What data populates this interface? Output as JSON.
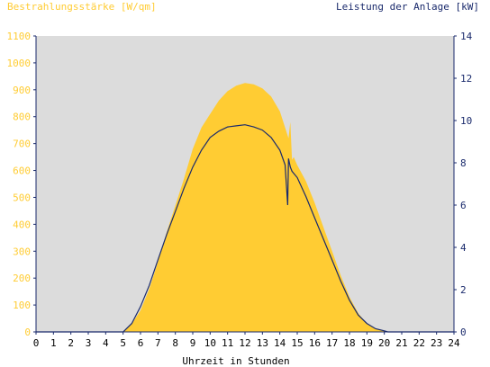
{
  "chart_data": {
    "type": "area",
    "title_left": "Bestrahlungsstärke [W/qm]",
    "title_right": "Leistung der Anlage [kW]",
    "xlabel": "Uhrzeit in Stunden",
    "xlim": [
      0,
      24
    ],
    "ylim_left": [
      0,
      1100
    ],
    "ylim_right": [
      0,
      14
    ],
    "x_ticks": [
      "0",
      "1",
      "2",
      "3",
      "4",
      "5",
      "6",
      "7",
      "8",
      "9",
      "10",
      "11",
      "12",
      "13",
      "14",
      "15",
      "16",
      "17",
      "18",
      "19",
      "20",
      "21",
      "22",
      "23",
      "24"
    ],
    "y_ticks_left": [
      "0",
      "100",
      "200",
      "300",
      "400",
      "500",
      "600",
      "700",
      "800",
      "900",
      "1000",
      "1100"
    ],
    "y_ticks_right": [
      "0",
      "2",
      "4",
      "6",
      "8",
      "10",
      "12",
      "14"
    ],
    "grid": false,
    "colors": {
      "plot_bg": "#dcdcdc",
      "irradiance": "#ffcc33",
      "power": "#1a2a6c",
      "axis": "#1a2a6c",
      "left_labels": "#ffcc33"
    },
    "series": [
      {
        "name": "Bestrahlungsstärke [W/qm]",
        "axis": "left",
        "style": "area",
        "x": [
          0,
          5.0,
          5.5,
          6.0,
          6.5,
          7.0,
          7.5,
          8.0,
          8.5,
          9.0,
          9.5,
          10.0,
          10.5,
          11.0,
          11.5,
          12.0,
          12.5,
          13.0,
          13.5,
          14.0,
          14.3,
          14.5,
          14.6,
          14.7,
          14.8,
          15.0,
          15.5,
          16.0,
          16.5,
          17.0,
          17.5,
          18.0,
          18.5,
          19.0,
          19.5,
          20.0,
          20.3,
          24
        ],
        "y": [
          0,
          0,
          30,
          80,
          160,
          260,
          370,
          470,
          570,
          680,
          760,
          810,
          860,
          895,
          915,
          925,
          920,
          905,
          875,
          820,
          760,
          720,
          780,
          640,
          650,
          620,
          560,
          480,
          390,
          300,
          210,
          130,
          70,
          30,
          12,
          4,
          0,
          0
        ]
      },
      {
        "name": "Leistung der Anlage [kW]",
        "axis": "right",
        "style": "line",
        "x": [
          0,
          5.0,
          5.5,
          6.0,
          6.5,
          7.0,
          7.5,
          8.0,
          8.5,
          9.0,
          9.5,
          10.0,
          10.5,
          11.0,
          11.5,
          12.0,
          12.5,
          13.0,
          13.5,
          14.0,
          14.3,
          14.45,
          14.5,
          14.55,
          14.6,
          14.7,
          15.0,
          15.5,
          16.0,
          16.5,
          17.0,
          17.5,
          18.0,
          18.5,
          19.0,
          19.5,
          20.0,
          20.2,
          24
        ],
        "y": [
          0,
          0,
          0.4,
          1.2,
          2.2,
          3.4,
          4.6,
          5.7,
          6.8,
          7.8,
          8.6,
          9.2,
          9.5,
          9.7,
          9.75,
          9.8,
          9.7,
          9.55,
          9.2,
          8.6,
          7.9,
          6.0,
          8.2,
          8.0,
          7.8,
          7.6,
          7.3,
          6.4,
          5.4,
          4.4,
          3.4,
          2.4,
          1.5,
          0.8,
          0.4,
          0.15,
          0.05,
          0,
          0
        ]
      }
    ]
  }
}
